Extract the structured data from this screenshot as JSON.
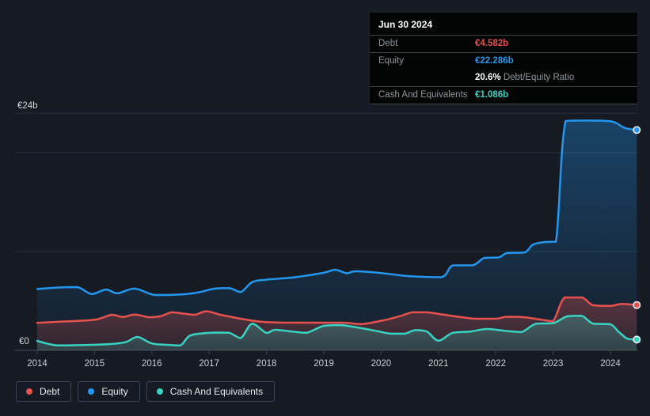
{
  "colors": {
    "debt": "#e8524e",
    "equity": "#2396ef",
    "cash": "#38d3c2",
    "background": "#151a23",
    "tooltip_background": "#030404",
    "grid": "#26303c",
    "axis": "#3f4954",
    "axis_text": "#c9ced4",
    "text_muted": "#8e959c",
    "text_bright": "#ffffff",
    "legend_border": "#3b4552",
    "legend_text": "#e8ebee"
  },
  "tooltip": {
    "date": "Jun 30 2024",
    "debt_label": "Debt",
    "debt_value": "€4.582b",
    "equity_label": "Equity",
    "equity_value": "€22.286b",
    "ratio_value": "20.6%",
    "ratio_label": "Debt/Equity Ratio",
    "cash_label": "Cash And Equivalents",
    "cash_value": "€1.086b"
  },
  "legend": {
    "items": [
      {
        "label": "Debt",
        "color_key": "debt"
      },
      {
        "label": "Equity",
        "color_key": "equity"
      },
      {
        "label": "Cash And Equivalents",
        "color_key": "cash"
      }
    ]
  },
  "axis": {
    "y_top_label": "€24b",
    "y_zero_label": "€0",
    "years": [
      "2014",
      "2015",
      "2016",
      "2017",
      "2018",
      "2019",
      "2020",
      "2021",
      "2022",
      "2023",
      "2024"
    ]
  },
  "chart_data": {
    "type": "area",
    "title": "Debt to Equity history",
    "xlabel": "",
    "ylabel": "€b",
    "x_range": [
      2014,
      2024.5
    ],
    "ylim": [
      0,
      24
    ],
    "grid_values": [
      24,
      20,
      10,
      0
    ],
    "legend_position": "bottom-left",
    "paint_order": [
      "Equity",
      "Debt",
      "Cash And Equivalents"
    ],
    "series": [
      {
        "name": "Debt",
        "color": "#e8524e",
        "end_value": 4.582,
        "points": [
          [
            2014.0,
            2.78
          ],
          [
            2014.4,
            2.9
          ],
          [
            2015.0,
            3.1
          ],
          [
            2015.3,
            3.6
          ],
          [
            2015.5,
            3.38
          ],
          [
            2015.7,
            3.62
          ],
          [
            2015.95,
            3.35
          ],
          [
            2016.15,
            3.45
          ],
          [
            2016.35,
            3.85
          ],
          [
            2016.55,
            3.72
          ],
          [
            2016.75,
            3.6
          ],
          [
            2016.95,
            3.95
          ],
          [
            2017.2,
            3.6
          ],
          [
            2017.55,
            3.2
          ],
          [
            2017.9,
            2.9
          ],
          [
            2018.3,
            2.8
          ],
          [
            2019.3,
            2.8
          ],
          [
            2019.65,
            2.65
          ],
          [
            2020.05,
            3.05
          ],
          [
            2020.35,
            3.5
          ],
          [
            2020.55,
            3.85
          ],
          [
            2020.8,
            3.85
          ],
          [
            2021.05,
            3.65
          ],
          [
            2021.35,
            3.4
          ],
          [
            2021.65,
            3.2
          ],
          [
            2022.0,
            3.2
          ],
          [
            2022.2,
            3.4
          ],
          [
            2022.5,
            3.35
          ],
          [
            2022.8,
            3.1
          ],
          [
            2023.0,
            2.95
          ],
          [
            2023.2,
            5.35
          ],
          [
            2023.5,
            5.35
          ],
          [
            2023.7,
            4.56
          ],
          [
            2024.0,
            4.5
          ],
          [
            2024.2,
            4.7
          ],
          [
            2024.46,
            4.582
          ]
        ]
      },
      {
        "name": "Equity",
        "color": "#2396ef",
        "end_value": 22.286,
        "points": [
          [
            2014.0,
            6.2
          ],
          [
            2014.35,
            6.35
          ],
          [
            2014.7,
            6.4
          ],
          [
            2014.95,
            5.7
          ],
          [
            2015.2,
            6.15
          ],
          [
            2015.4,
            5.78
          ],
          [
            2015.7,
            6.25
          ],
          [
            2016.05,
            5.6
          ],
          [
            2016.5,
            5.65
          ],
          [
            2016.8,
            5.85
          ],
          [
            2017.1,
            6.25
          ],
          [
            2017.35,
            6.3
          ],
          [
            2017.55,
            5.9
          ],
          [
            2017.75,
            6.9
          ],
          [
            2018.0,
            7.15
          ],
          [
            2018.5,
            7.4
          ],
          [
            2019.0,
            7.85
          ],
          [
            2019.2,
            8.15
          ],
          [
            2019.4,
            7.8
          ],
          [
            2019.55,
            8.0
          ],
          [
            2019.95,
            7.85
          ],
          [
            2020.5,
            7.5
          ],
          [
            2021.05,
            7.4
          ],
          [
            2021.25,
            8.6
          ],
          [
            2021.6,
            8.6
          ],
          [
            2021.8,
            9.35
          ],
          [
            2022.05,
            9.4
          ],
          [
            2022.2,
            9.85
          ],
          [
            2022.5,
            9.9
          ],
          [
            2022.65,
            10.7
          ],
          [
            2022.85,
            10.95
          ],
          [
            2023.05,
            11.0
          ],
          [
            2023.22,
            23.2
          ],
          [
            2023.6,
            23.25
          ],
          [
            2023.95,
            23.2
          ],
          [
            2024.1,
            23.0
          ],
          [
            2024.25,
            22.5
          ],
          [
            2024.46,
            22.286
          ]
        ]
      },
      {
        "name": "Cash And Equivalents",
        "color": "#38d3c2",
        "end_value": 1.086,
        "points": [
          [
            2014.0,
            0.96
          ],
          [
            2014.35,
            0.5
          ],
          [
            2014.9,
            0.55
          ],
          [
            2015.3,
            0.65
          ],
          [
            2015.55,
            0.85
          ],
          [
            2015.75,
            1.36
          ],
          [
            2016.0,
            0.7
          ],
          [
            2016.3,
            0.55
          ],
          [
            2016.5,
            0.5
          ],
          [
            2016.65,
            1.44
          ],
          [
            2016.85,
            1.7
          ],
          [
            2017.1,
            1.8
          ],
          [
            2017.35,
            1.78
          ],
          [
            2017.55,
            1.25
          ],
          [
            2017.75,
            2.7
          ],
          [
            2018.0,
            1.76
          ],
          [
            2018.15,
            2.08
          ],
          [
            2018.45,
            1.9
          ],
          [
            2018.7,
            1.78
          ],
          [
            2019.0,
            2.48
          ],
          [
            2019.3,
            2.56
          ],
          [
            2019.8,
            2.1
          ],
          [
            2020.15,
            1.7
          ],
          [
            2020.4,
            1.68
          ],
          [
            2020.6,
            2.05
          ],
          [
            2020.8,
            1.9
          ],
          [
            2021.0,
            0.98
          ],
          [
            2021.25,
            1.78
          ],
          [
            2021.55,
            1.9
          ],
          [
            2021.85,
            2.16
          ],
          [
            2022.2,
            1.95
          ],
          [
            2022.45,
            1.85
          ],
          [
            2022.7,
            2.7
          ],
          [
            2023.0,
            2.75
          ],
          [
            2023.25,
            3.45
          ],
          [
            2023.5,
            3.5
          ],
          [
            2023.7,
            2.7
          ],
          [
            2024.0,
            2.64
          ],
          [
            2024.15,
            1.84
          ],
          [
            2024.3,
            1.18
          ],
          [
            2024.46,
            1.086
          ]
        ]
      }
    ]
  }
}
